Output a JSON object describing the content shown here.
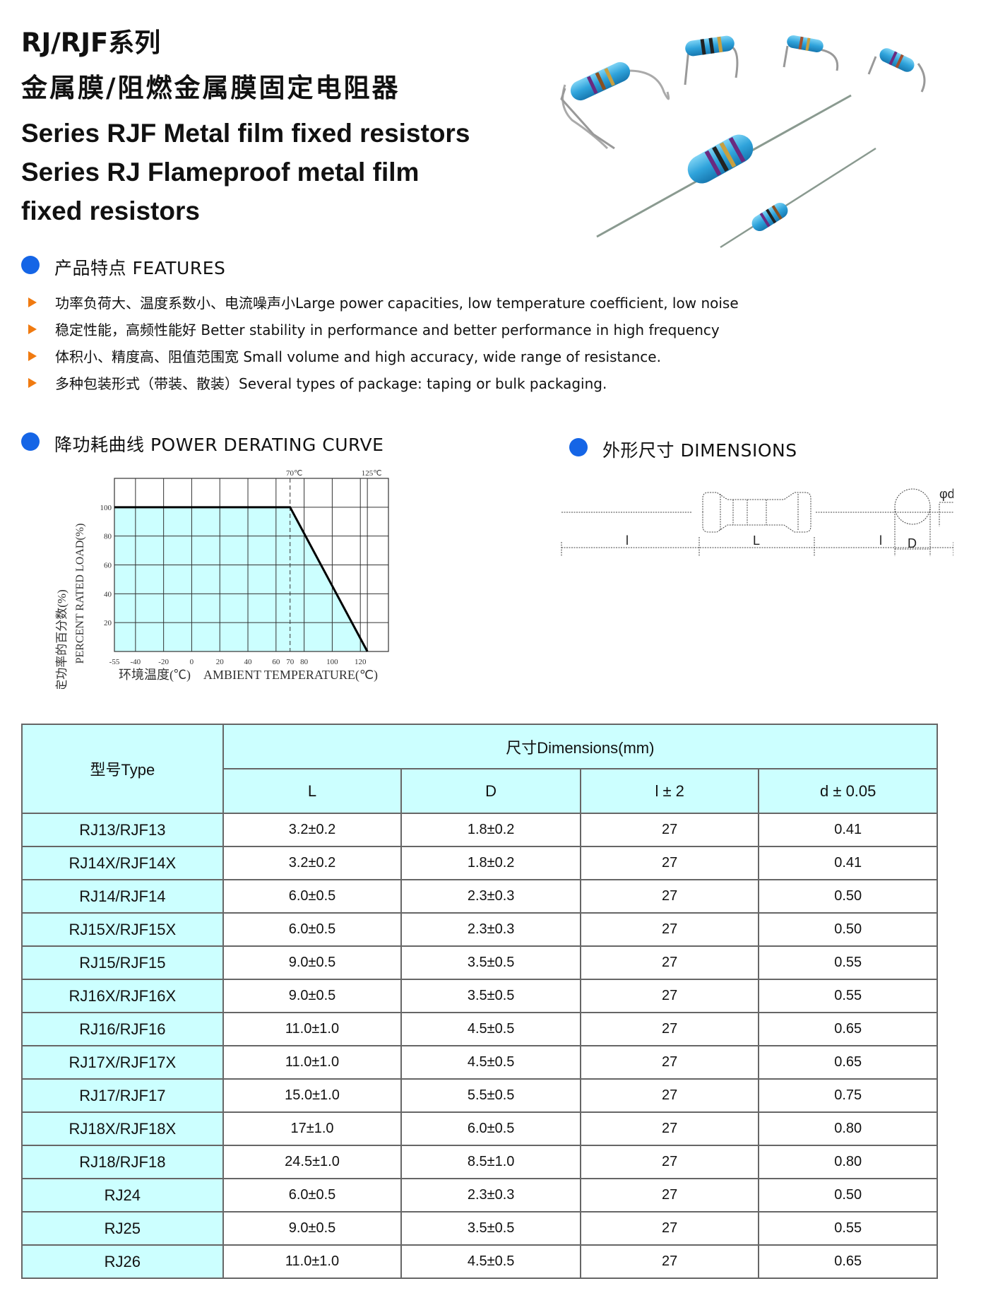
{
  "header": {
    "title_cn_1": "RJ/RJF系列",
    "title_cn_2": "金属膜/阻燃金属膜固定电阻器",
    "title_en_1": "Series RJF Metal film fixed resistors",
    "title_en_2": "Series RJ Flameproof metal film",
    "title_en_3": "fixed resistors"
  },
  "features": {
    "heading": "产品特点 FEATURES",
    "items": [
      "功率负荷大、温度系数小、电流噪声小Large power capacities, low temperature coefficient, low noise",
      "稳定性能，高频性能好 Better stability in performance and better performance in high frequency",
      "体积小、精度高、阻值范围宽 Small volume and high accuracy, wide range of resistance.",
      "多种包装形式（带装、散装）Several types of package: taping or bulk  packaging."
    ],
    "bullet_color": "#f07a10",
    "dot_color": "#1565e6"
  },
  "derating": {
    "heading": "降功耗曲线 POWER DERATING CURVE"
  },
  "dimensions": {
    "heading": "外形尺寸 DIMENSIONS",
    "label_phi_d": "φd",
    "label_l": "l",
    "label_L": "L",
    "label_D": "D"
  },
  "chart_data": {
    "type": "area",
    "x": [
      -55,
      70,
      125
    ],
    "y": [
      100,
      100,
      0
    ],
    "xlabel": "环境温度(℃)    AMBIENT TEMPERATURE(℃)",
    "ylabel_cn": "额定功率的百分数(%)",
    "ylabel_en": "PERCENT RATED LOAD(%)",
    "xlim": [
      -55,
      140
    ],
    "ylim": [
      0,
      120
    ],
    "x_ticks": [
      "-55",
      "-40",
      "-20",
      "0",
      "20",
      "40",
      "60",
      "70",
      "80",
      "100",
      "120"
    ],
    "x_tick_values": [
      -55,
      -40,
      -20,
      0,
      20,
      40,
      60,
      70,
      80,
      100,
      120
    ],
    "y_ticks": [
      "20",
      "40",
      "60",
      "80",
      "100"
    ],
    "y_tick_values": [
      20,
      40,
      60,
      80,
      100
    ],
    "top_annotations": [
      "70℃",
      "125℃"
    ],
    "annotation_values": [
      70,
      125
    ],
    "grid": true,
    "fill_color": "#ccffff"
  },
  "table": {
    "type_header": "型号Type",
    "dim_header": "尺寸Dimensions(mm)",
    "columns": [
      "L",
      "D",
      "l ± 2",
      "d ± 0.05"
    ],
    "rows": [
      [
        "RJ13/RJF13",
        "3.2±0.2",
        "1.8±0.2",
        "27",
        "0.41"
      ],
      [
        "RJ14X/RJF14X",
        "3.2±0.2",
        "1.8±0.2",
        "27",
        "0.41"
      ],
      [
        "RJ14/RJF14",
        "6.0±0.5",
        "2.3±0.3",
        "27",
        "0.50"
      ],
      [
        "RJ15X/RJF15X",
        "6.0±0.5",
        "2.3±0.3",
        "27",
        "0.50"
      ],
      [
        "RJ15/RJF15",
        "9.0±0.5",
        "3.5±0.5",
        "27",
        "0.55"
      ],
      [
        "RJ16X/RJF16X",
        "9.0±0.5",
        "3.5±0.5",
        "27",
        "0.55"
      ],
      [
        "RJ16/RJF16",
        "11.0±1.0",
        "4.5±0.5",
        "27",
        "0.65"
      ],
      [
        "RJ17X/RJF17X",
        "11.0±1.0",
        "4.5±0.5",
        "27",
        "0.65"
      ],
      [
        "RJ17/RJF17",
        "15.0±1.0",
        "5.5±0.5",
        "27",
        "0.75"
      ],
      [
        "RJ18X/RJF18X",
        "17±1.0",
        "6.0±0.5",
        "27",
        "0.80"
      ],
      [
        "RJ18/RJF18",
        "24.5±1.0",
        "8.5±1.0",
        "27",
        "0.80"
      ],
      [
        "RJ24",
        "6.0±0.5",
        "2.3±0.3",
        "27",
        "0.50"
      ],
      [
        "RJ25",
        "9.0±0.5",
        "3.5±0.5",
        "27",
        "0.55"
      ],
      [
        "RJ26",
        "11.0±1.0",
        "4.5±0.5",
        "27",
        "0.65"
      ]
    ]
  }
}
